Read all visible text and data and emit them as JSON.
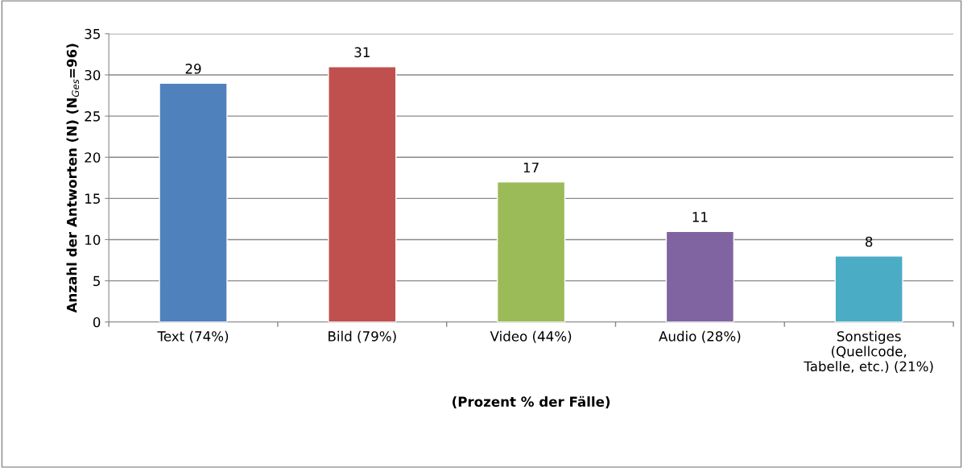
{
  "chart_data": {
    "type": "bar",
    "categories": [
      "Text (74%)",
      "Bild (79%)",
      "Video (44%)",
      "Audio (28%)",
      "Sonstiges\n(Quellcode,\nTabelle, etc.) (21%)"
    ],
    "values": [
      29,
      31,
      17,
      11,
      8
    ],
    "colors": [
      "#4f81bd",
      "#c0504d",
      "#9bbb59",
      "#8064a2",
      "#4bacc6"
    ],
    "xlabel": "(Prozent % der Fälle)",
    "ylabel": "Anzahl der Antworten (N) (N$_{Ges}$=96)",
    "ylim": [
      0,
      35
    ],
    "yticks": [
      0,
      5,
      10,
      15,
      20,
      25,
      30,
      35
    ],
    "grid": "y",
    "data_labels": true
  }
}
